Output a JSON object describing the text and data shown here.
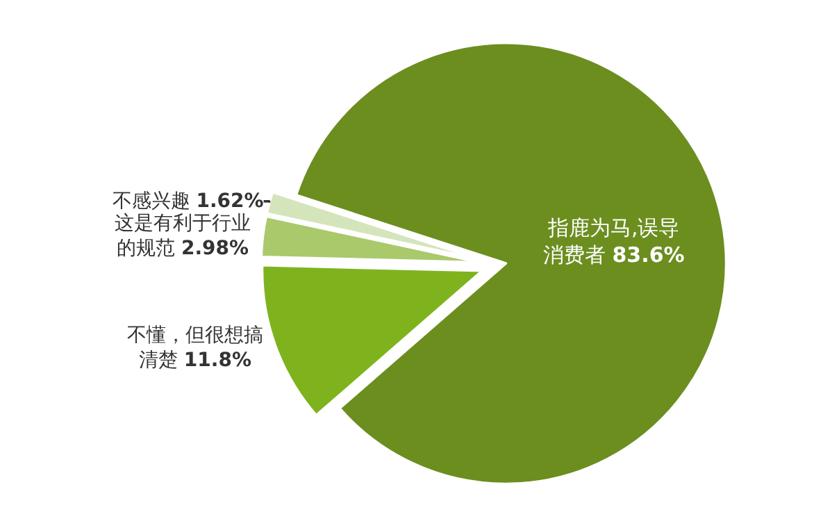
{
  "chart_data": {
    "type": "pie",
    "categories": [
      "指鹿为马,误导消费者",
      "不懂，但很想搞清楚",
      "这是有利于行业的规范",
      "不感兴趣"
    ],
    "values": [
      83.6,
      11.8,
      2.98,
      1.62
    ],
    "value_labels": [
      "83.6%",
      "11.8%",
      "2.98%",
      "1.62%"
    ],
    "colors": [
      "#6b8e1f",
      "#7fb31e",
      "#a9c96b",
      "#d5e5bb"
    ],
    "legend": false
  }
}
